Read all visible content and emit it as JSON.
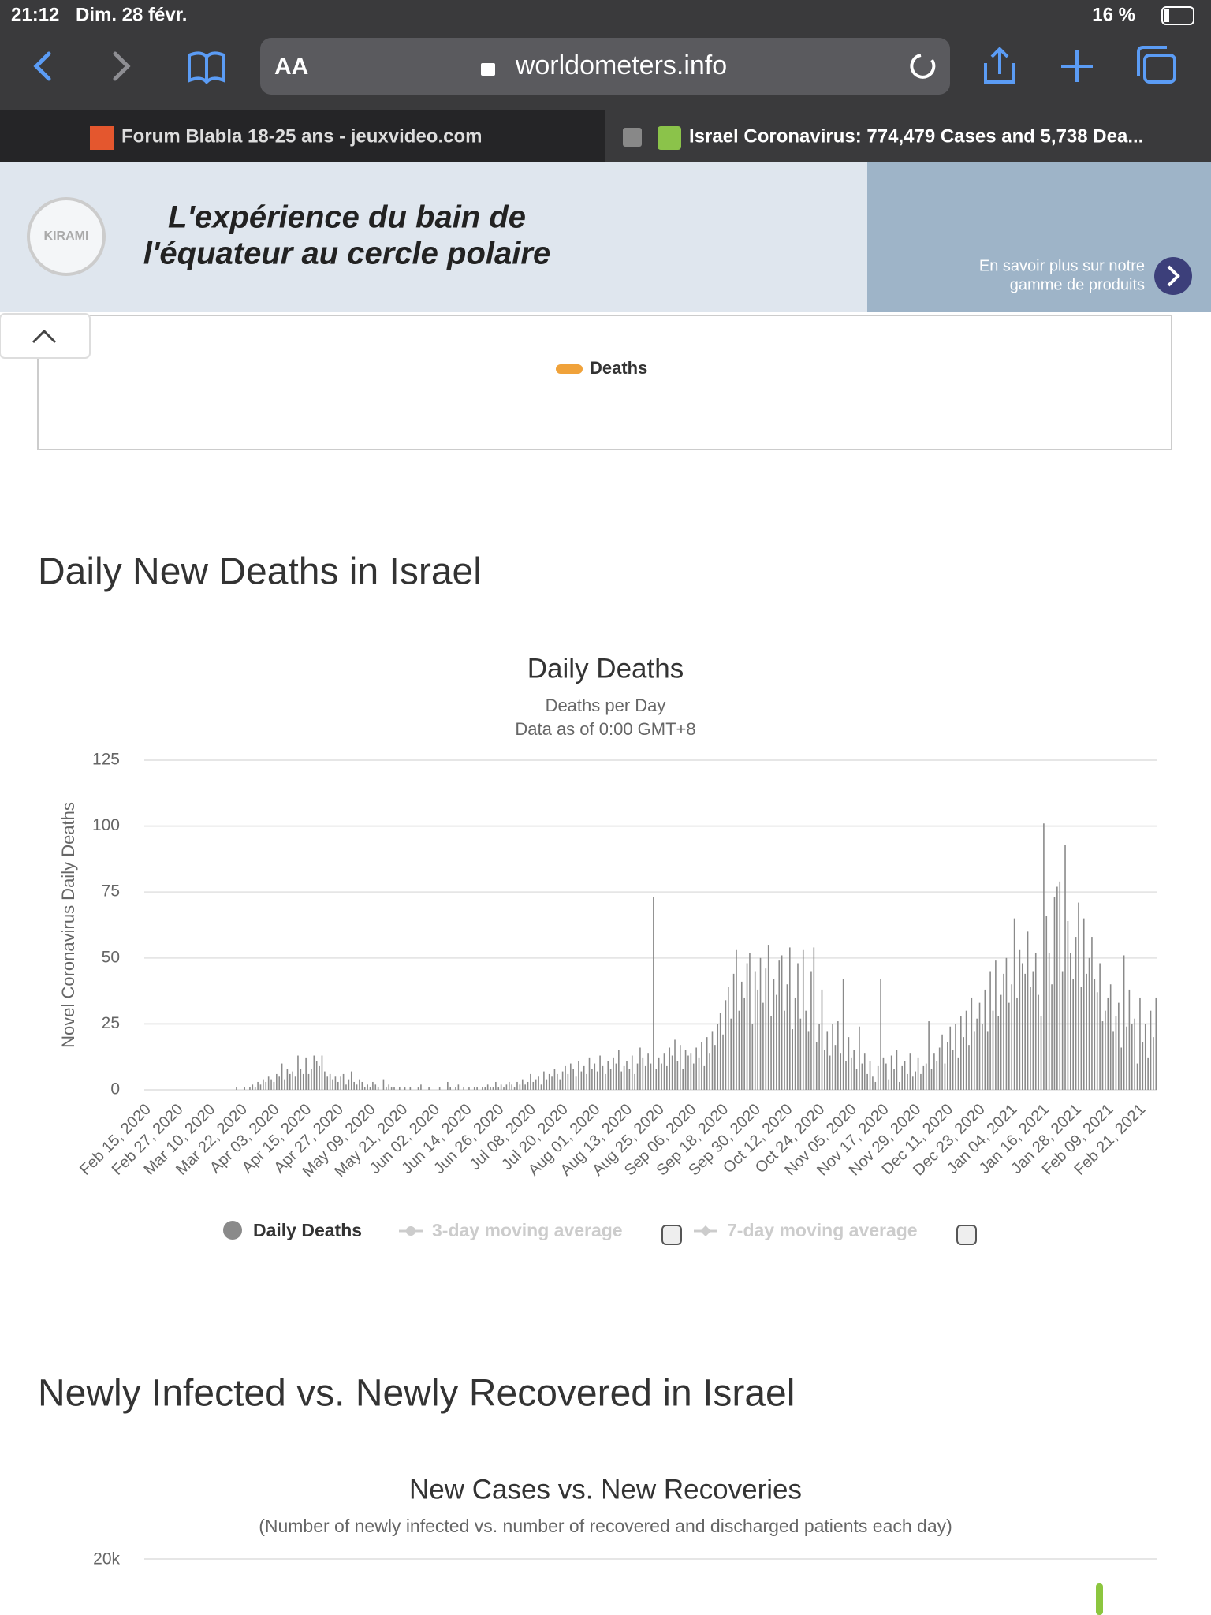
{
  "status_bar": {
    "time": "21:12",
    "date": "Dim. 28 févr.",
    "battery": "16 %"
  },
  "browser": {
    "text_size": "AA",
    "url": "worldometers.info"
  },
  "tabs": [
    "Forum Blabla 18-25 ans - jeuxvideo.com",
    "Israel Coronavirus: 774,479 Cases and 5,738 Dea..."
  ],
  "ad": {
    "brand": "KIRAMI",
    "headline": [
      "L'expérience du bain de",
      "l'équateur au cercle polaire"
    ],
    "cta": [
      "En savoir plus sur notre",
      "gamme de produits"
    ]
  },
  "prev_chart": {
    "legend": "Deaths"
  },
  "section_title": "Daily New Deaths in Israel",
  "chart_data": {
    "type": "bar",
    "title": "Daily Deaths",
    "subtitle": [
      "Deaths per Day",
      "Data as of 0:00 GMT+8"
    ],
    "ylabel": "Novel Coronavirus Daily Deaths",
    "ylim": [
      0,
      125
    ],
    "yticks": [
      0,
      25,
      50,
      75,
      100,
      125
    ],
    "grid": true,
    "categories": [
      "Feb 15, 2020",
      null,
      null,
      null,
      null,
      null,
      null,
      null,
      null,
      null,
      null,
      null,
      "Feb 27, 2020",
      null,
      null,
      null,
      null,
      null,
      null,
      null,
      null,
      null,
      null,
      null,
      "Mar 10, 2020",
      null,
      null,
      null,
      null,
      null,
      null,
      null,
      null,
      null,
      null,
      null,
      "Mar 22, 2020",
      null,
      null,
      null,
      null,
      null,
      null,
      null,
      null,
      null,
      null,
      null,
      "Apr 03, 2020",
      null,
      null,
      null,
      null,
      null,
      null,
      null,
      null,
      null,
      null,
      null,
      "Apr 15, 2020",
      null,
      null,
      null,
      null,
      null,
      null,
      null,
      null,
      null,
      null,
      null,
      "Apr 27, 2020",
      null,
      null,
      null,
      null,
      null,
      null,
      null,
      null,
      null,
      null,
      null,
      "May 09, 2020",
      null,
      null,
      null,
      null,
      null,
      null,
      null,
      null,
      null,
      null,
      null,
      "May 21, 2020",
      null,
      null,
      null,
      null,
      null,
      null,
      null,
      null,
      null,
      null,
      null,
      "Jun 02, 2020",
      null,
      null,
      null,
      null,
      null,
      null,
      null,
      null,
      null,
      null,
      null,
      "Jun 14, 2020",
      null,
      null,
      null,
      null,
      null,
      null,
      null,
      null,
      null,
      null,
      null,
      "Jun 26, 2020",
      null,
      null,
      null,
      null,
      null,
      null,
      null,
      null,
      null,
      null,
      null,
      "Jul 08, 2020",
      null,
      null,
      null,
      null,
      null,
      null,
      null,
      null,
      null,
      null,
      null,
      "Jul 20, 2020",
      null,
      null,
      null,
      null,
      null,
      null,
      null,
      null,
      null,
      null,
      null,
      "Aug 01, 2020",
      null,
      null,
      null,
      null,
      null,
      null,
      null,
      null,
      null,
      null,
      null,
      "Aug 13, 2020",
      null,
      null,
      null,
      null,
      null,
      null,
      null,
      null,
      null,
      null,
      null,
      "Aug 25, 2020",
      null,
      null,
      null,
      null,
      null,
      null,
      null,
      null,
      null,
      null,
      null,
      "Sep 06, 2020",
      null,
      null,
      null,
      null,
      null,
      null,
      null,
      null,
      null,
      null,
      null,
      "Sep 18, 2020",
      null,
      null,
      null,
      null,
      null,
      null,
      null,
      null,
      null,
      null,
      null,
      "Sep 30, 2020",
      null,
      null,
      null,
      null,
      null,
      null,
      null,
      null,
      null,
      null,
      null,
      "Oct 12, 2020",
      null,
      null,
      null,
      null,
      null,
      null,
      null,
      null,
      null,
      null,
      null,
      "Oct 24, 2020",
      null,
      null,
      null,
      null,
      null,
      null,
      null,
      null,
      null,
      null,
      null,
      "Nov 05, 2020",
      null,
      null,
      null,
      null,
      null,
      null,
      null,
      null,
      null,
      null,
      null,
      "Nov 17, 2020",
      null,
      null,
      null,
      null,
      null,
      null,
      null,
      null,
      null,
      null,
      null,
      "Nov 29, 2020",
      null,
      null,
      null,
      null,
      null,
      null,
      null,
      null,
      null,
      null,
      null,
      "Dec 11, 2020",
      null,
      null,
      null,
      null,
      null,
      null,
      null,
      null,
      null,
      null,
      null,
      "Dec 23, 2020",
      null,
      null,
      null,
      null,
      null,
      null,
      null,
      null,
      null,
      null,
      null,
      "Jan 04, 2021",
      null,
      null,
      null,
      null,
      null,
      null,
      null,
      null,
      null,
      null,
      null,
      "Jan 16, 2021",
      null,
      null,
      null,
      null,
      null,
      null,
      null,
      null,
      null,
      null,
      null,
      "Jan 28, 2021",
      null,
      null,
      null,
      null,
      null,
      null,
      null,
      null,
      null,
      null,
      null,
      "Feb 09, 2021",
      null,
      null,
      null,
      null,
      null,
      null,
      null,
      null,
      null,
      null,
      null,
      "Feb 21, 2021",
      null,
      null,
      null,
      null,
      null,
      null
    ],
    "series": [
      {
        "name": "Daily Deaths",
        "color": "#8a8a8a",
        "values": [
          0,
          0,
          0,
          0,
          0,
          0,
          0,
          0,
          0,
          0,
          0,
          0,
          0,
          0,
          0,
          0,
          0,
          0,
          0,
          0,
          0,
          0,
          0,
          0,
          0,
          0,
          0,
          0,
          0,
          0,
          0,
          0,
          0,
          0,
          1,
          0,
          0,
          1,
          0,
          1,
          2,
          1,
          3,
          2,
          4,
          3,
          5,
          4,
          3,
          6,
          5,
          10,
          4,
          8,
          6,
          7,
          5,
          13,
          8,
          6,
          12,
          6,
          8,
          13,
          11,
          9,
          13,
          7,
          5,
          6,
          4,
          5,
          3,
          5,
          6,
          2,
          4,
          7,
          3,
          2,
          4,
          3,
          1,
          2,
          1,
          3,
          2,
          1,
          0,
          4,
          1,
          2,
          1,
          1,
          0,
          1,
          0,
          1,
          0,
          1,
          0,
          0,
          1,
          2,
          0,
          0,
          1,
          0,
          0,
          0,
          1,
          0,
          0,
          3,
          1,
          0,
          1,
          2,
          0,
          1,
          0,
          1,
          0,
          1,
          1,
          0,
          1,
          1,
          2,
          1,
          1,
          3,
          1,
          2,
          1,
          2,
          3,
          2,
          1,
          3,
          2,
          4,
          2,
          3,
          6,
          3,
          4,
          5,
          2,
          7,
          4,
          6,
          5,
          8,
          6,
          4,
          7,
          9,
          6,
          10,
          8,
          5,
          11,
          7,
          9,
          6,
          12,
          8,
          10,
          7,
          13,
          9,
          6,
          11,
          8,
          12,
          10,
          15,
          7,
          9,
          11,
          8,
          13,
          6,
          10,
          16,
          12,
          9,
          14,
          10,
          73,
          8,
          12,
          10,
          14,
          9,
          16,
          13,
          19,
          11,
          17,
          8,
          15,
          13,
          14,
          10,
          16,
          12,
          18,
          9,
          20,
          14,
          22,
          17,
          25,
          29,
          21,
          34,
          39,
          27,
          44,
          53,
          30,
          41,
          35,
          48,
          52,
          25,
          45,
          38,
          50,
          33,
          46,
          55,
          28,
          42,
          36,
          49,
          51,
          30,
          40,
          54,
          23,
          35,
          48,
          27,
          53,
          30,
          22,
          45,
          54,
          18,
          25,
          38,
          15,
          22,
          13,
          25,
          17,
          26,
          14,
          42,
          11,
          20,
          12,
          15,
          8,
          24,
          10,
          14,
          6,
          11,
          5,
          3,
          9,
          42,
          12,
          10,
          4,
          13,
          8,
          15,
          3,
          9,
          11,
          6,
          14,
          5,
          7,
          12,
          6,
          9,
          10,
          26,
          8,
          14,
          11,
          16,
          21,
          10,
          18,
          24,
          15,
          25,
          12,
          28,
          20,
          30,
          17,
          35,
          22,
          27,
          33,
          25,
          38,
          22,
          45,
          30,
          49,
          28,
          36,
          44,
          50,
          33,
          40,
          65,
          35,
          53,
          48,
          44,
          60,
          39,
          45,
          52,
          36,
          28,
          101,
          66,
          52,
          40,
          73,
          77,
          79,
          45,
          93,
          64,
          52,
          42,
          58,
          71,
          39,
          65,
          44,
          50,
          58,
          42,
          37,
          48,
          26,
          30,
          35,
          40,
          22,
          28,
          33,
          16,
          51,
          24,
          38,
          25,
          27,
          10,
          35,
          18,
          25,
          12,
          30,
          20,
          35
        ]
      }
    ],
    "inactive_legend": [
      "3-day moving average",
      "7-day moving average"
    ]
  },
  "next_section": {
    "title": "Newly Infected vs. Newly Recovered in Israel",
    "chart_title": "New Cases vs. New Recoveries",
    "chart_subtitle": "(Number of newly infected vs. number of recovered and discharged patients each day)",
    "first_tick": "20k"
  }
}
